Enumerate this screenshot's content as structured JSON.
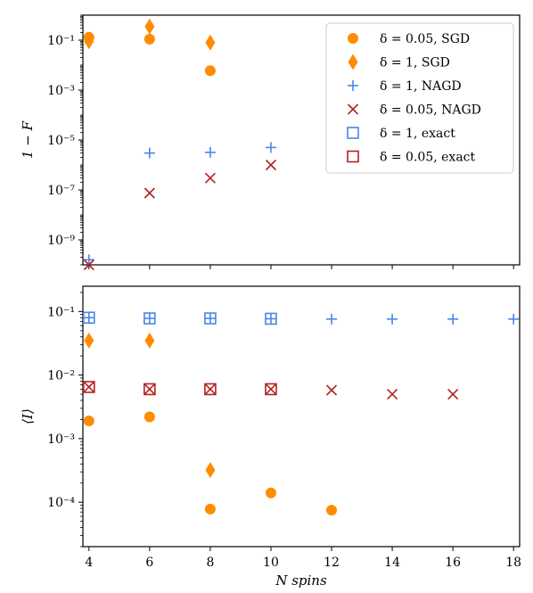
{
  "chart_data": [
    {
      "type": "scatter",
      "panel": "top",
      "ylabel": "1 − F",
      "yscale": "log",
      "ylim": [
        1e-10,
        1
      ],
      "xlim": [
        3.8,
        18.2
      ],
      "ytick_labels": [
        "10⁻⁹",
        "10⁻⁷",
        "10⁻⁵",
        "10⁻³",
        "10⁻¹"
      ],
      "ytick_values": [
        1e-09,
        1e-07,
        1e-05,
        0.001,
        0.1
      ],
      "legend_position": "top-right",
      "series": [
        {
          "name": "δ = 0.05, SGD",
          "marker": "circle",
          "color": "#ff8c00",
          "x": [
            4,
            6,
            8
          ],
          "y": [
            0.13,
            0.11,
            0.006
          ]
        },
        {
          "name": "δ = 1, SGD",
          "marker": "diamond",
          "color": "#ff8c00",
          "x": [
            4,
            6,
            8
          ],
          "y": [
            0.09,
            0.35,
            0.08
          ]
        },
        {
          "name": "δ = 1, NAGD",
          "marker": "plus",
          "color": "#4a86e8",
          "x": [
            4,
            6,
            8,
            10
          ],
          "y": [
            1.6e-10,
            3e-06,
            3.2e-06,
            5e-06
          ]
        },
        {
          "name": "δ = 0.05, NAGD",
          "marker": "x",
          "color": "#b22222",
          "x": [
            4,
            6,
            8,
            10
          ],
          "y": [
            1e-10,
            7.5e-08,
            3e-07,
            1e-06
          ]
        },
        {
          "name": "δ = 1, exact",
          "marker": "square",
          "color": "#4a86e8",
          "x": [],
          "y": []
        },
        {
          "name": "δ = 0.05, exact",
          "marker": "square",
          "color": "#b22222",
          "x": [],
          "y": []
        }
      ]
    },
    {
      "type": "scatter",
      "panel": "bottom",
      "ylabel": "⟨I⟩",
      "xlabel": "N spins",
      "yscale": "log",
      "ylim": [
        2e-05,
        0.25
      ],
      "xlim": [
        3.8,
        18.2
      ],
      "xtick_values": [
        4,
        6,
        8,
        10,
        12,
        14,
        16,
        18
      ],
      "xtick_labels": [
        "4",
        "6",
        "8",
        "10",
        "12",
        "14",
        "16",
        "18"
      ],
      "ytick_labels": [
        "10⁻⁴",
        "10⁻³",
        "10⁻²",
        "10⁻¹"
      ],
      "ytick_values": [
        0.0001,
        0.001,
        0.01,
        0.1
      ],
      "series": [
        {
          "name": "δ = 0.05, SGD",
          "marker": "circle",
          "color": "#ff8c00",
          "x": [
            4,
            6,
            8,
            10,
            12
          ],
          "y": [
            0.0019,
            0.0022,
            7.8e-05,
            0.00014,
            7.5e-05
          ]
        },
        {
          "name": "δ = 1, SGD",
          "marker": "diamond",
          "color": "#ff8c00",
          "x": [
            4,
            6,
            8
          ],
          "y": [
            0.035,
            0.035,
            0.00032
          ]
        },
        {
          "name": "δ = 1, NAGD",
          "marker": "plus",
          "color": "#4a86e8",
          "x": [
            4,
            6,
            8,
            10,
            12,
            14,
            16,
            18
          ],
          "y": [
            0.08,
            0.078,
            0.078,
            0.077,
            0.076,
            0.076,
            0.076,
            0.076
          ]
        },
        {
          "name": "δ = 0.05, NAGD",
          "marker": "x",
          "color": "#b22222",
          "x": [
            4,
            6,
            8,
            10,
            12,
            14,
            16
          ],
          "y": [
            0.0065,
            0.006,
            0.006,
            0.006,
            0.0058,
            0.005,
            0.005
          ]
        },
        {
          "name": "δ = 1, exact",
          "marker": "square",
          "color": "#4a86e8",
          "x": [
            4,
            6,
            8,
            10
          ],
          "y": [
            0.08,
            0.078,
            0.078,
            0.077
          ]
        },
        {
          "name": "δ = 0.05, exact",
          "marker": "square",
          "color": "#b22222",
          "x": [
            4,
            6,
            8,
            10
          ],
          "y": [
            0.0065,
            0.006,
            0.006,
            0.006
          ]
        }
      ]
    }
  ]
}
